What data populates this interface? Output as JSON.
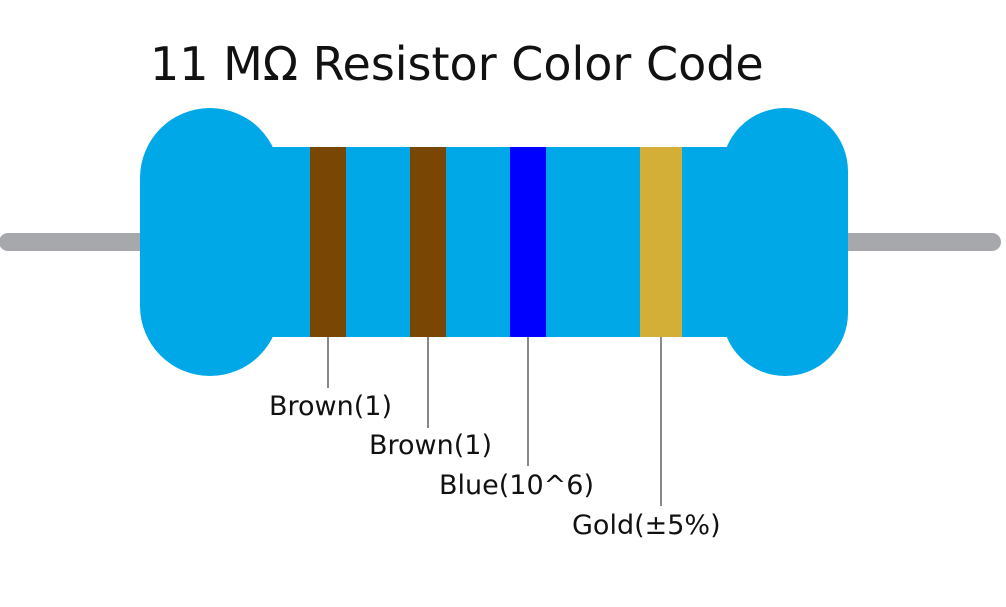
{
  "title": "11 MΩ Resistor Color Code",
  "resistor": {
    "body_color": "#00A8E8",
    "lead_color": "#A7A8AB"
  },
  "bands": [
    {
      "color_name": "Brown",
      "hex": "#7A4604",
      "label": "Brown(1)"
    },
    {
      "color_name": "Brown",
      "hex": "#7A4604",
      "label": "Brown(1)"
    },
    {
      "color_name": "Blue",
      "hex": "#0000FF",
      "label": "Blue(10^6)"
    },
    {
      "color_name": "Gold",
      "hex": "#D4AF37",
      "label": "Gold(±5%)"
    }
  ]
}
